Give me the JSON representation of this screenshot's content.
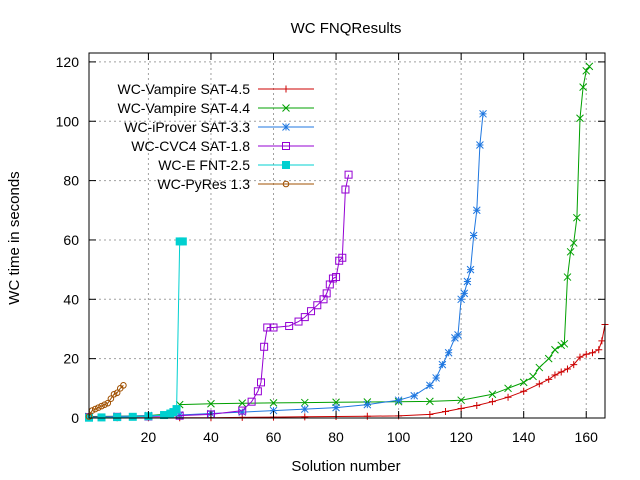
{
  "chart_data": {
    "type": "line",
    "title": "WC FNQResults",
    "xlabel": "Solution number",
    "ylabel": "WC time in seconds",
    "xlim": [
      1,
      166
    ],
    "ylim": [
      0,
      123
    ],
    "xticks": [
      20,
      40,
      60,
      80,
      100,
      120,
      140,
      160
    ],
    "yticks": [
      0,
      20,
      40,
      60,
      80,
      100,
      120
    ],
    "grid": true,
    "legend_position": "top-left",
    "series": [
      {
        "name": "WC-Vampire SAT-4.5",
        "color": "#cc0000",
        "marker": "plus",
        "x": [
          1,
          10,
          20,
          30,
          40,
          50,
          60,
          70,
          80,
          90,
          100,
          110,
          115,
          120,
          125,
          130,
          135,
          140,
          145,
          148,
          150,
          152,
          154,
          156,
          158,
          160,
          162,
          164,
          165,
          166
        ],
        "y": [
          0.1,
          0.1,
          0.1,
          0.1,
          0.1,
          0.2,
          0.3,
          0.4,
          0.5,
          0.6,
          0.7,
          1.2,
          2.2,
          3.2,
          4.2,
          5.5,
          7.0,
          9.0,
          11.5,
          13.0,
          14.5,
          15.5,
          16.5,
          18.0,
          20.5,
          21.5,
          22.0,
          23.0,
          26.0,
          31.5
        ]
      },
      {
        "name": "WC-Vampire SAT-4.4",
        "color": "#00a000",
        "marker": "cross",
        "x": [
          1,
          10,
          20,
          28,
          30,
          40,
          50,
          60,
          70,
          80,
          90,
          100,
          110,
          120,
          130,
          135,
          140,
          143,
          145,
          148,
          150,
          152,
          153,
          154,
          155,
          156,
          157,
          158,
          159,
          160,
          161
        ],
        "y": [
          0.5,
          0.6,
          0.8,
          1.5,
          4.5,
          4.8,
          5.0,
          5.1,
          5.2,
          5.3,
          5.4,
          5.5,
          5.6,
          6.0,
          8.0,
          10.0,
          12.0,
          14.0,
          17.0,
          20.0,
          23.0,
          24.5,
          25.0,
          47.5,
          56.0,
          59.0,
          67.5,
          101.0,
          111.5,
          117.0,
          118.5
        ]
      },
      {
        "name": "WC-iProver SAT-3.3",
        "color": "#1f77e0",
        "marker": "star",
        "x": [
          1,
          10,
          20,
          30,
          40,
          50,
          60,
          70,
          80,
          90,
          100,
          105,
          110,
          112,
          114,
          116,
          118,
          119,
          120,
          121,
          122,
          123,
          124,
          125,
          126,
          127
        ],
        "y": [
          0.3,
          0.5,
          0.8,
          1.0,
          1.5,
          2.0,
          2.5,
          3.0,
          3.5,
          4.5,
          6.0,
          7.5,
          11.0,
          13.5,
          18.0,
          22.0,
          27.0,
          28.0,
          40.0,
          42.0,
          46.0,
          50.0,
          61.5,
          70.0,
          92.0,
          102.5
        ]
      },
      {
        "name": "WC-CVC4 SAT-1.8",
        "color": "#9400d3",
        "marker": "square",
        "x": [
          1,
          10,
          20,
          30,
          40,
          50,
          53,
          55,
          56,
          57,
          58,
          60,
          65,
          68,
          70,
          72,
          74,
          76,
          77,
          78,
          79,
          80,
          81,
          82,
          83,
          84
        ],
        "y": [
          0.3,
          0.4,
          0.5,
          0.8,
          1.2,
          2.5,
          5.5,
          9.0,
          12.0,
          24.0,
          30.5,
          30.5,
          31.0,
          32.5,
          34.0,
          36.0,
          38.0,
          40.0,
          42.0,
          45.0,
          47.0,
          47.5,
          53.0,
          54.0,
          77.0,
          82.0
        ]
      },
      {
        "name": "WC-E FNT-2.5",
        "color": "#00d0d0",
        "marker": "filled-square",
        "x": [
          1,
          5,
          10,
          15,
          20,
          25,
          27,
          28,
          29,
          30,
          31
        ],
        "y": [
          0.1,
          0.2,
          0.3,
          0.4,
          0.6,
          1.0,
          1.5,
          2.0,
          3.0,
          59.5,
          59.5
        ]
      },
      {
        "name": "WC-PyRes 1.3",
        "color": "#a05000",
        "marker": "circle",
        "x": [
          1,
          2,
          3,
          4,
          5,
          6,
          7,
          8,
          9,
          10,
          11,
          12
        ],
        "y": [
          0.5,
          2.5,
          3.0,
          3.5,
          4.0,
          4.5,
          5.0,
          6.5,
          8.0,
          8.5,
          10.0,
          11.0
        ]
      }
    ]
  }
}
